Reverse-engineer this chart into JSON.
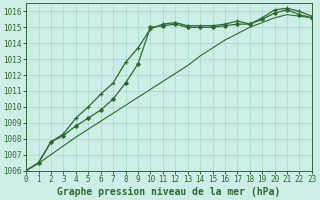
{
  "title": "Graphe pression niveau de la mer (hPa)",
  "background_color": "#cceee6",
  "grid_color": "#aaddcc",
  "line_color": "#2d6a2d",
  "xlim": [
    0,
    23
  ],
  "ylim": [
    1006,
    1016.5
  ],
  "xticks": [
    0,
    1,
    2,
    3,
    4,
    5,
    6,
    7,
    8,
    9,
    10,
    11,
    12,
    13,
    14,
    15,
    16,
    17,
    18,
    19,
    20,
    21,
    22,
    23
  ],
  "yticks": [
    1006,
    1007,
    1008,
    1009,
    1010,
    1011,
    1012,
    1013,
    1014,
    1015,
    1016
  ],
  "series1_x": [
    0,
    1,
    2,
    3,
    4,
    5,
    6,
    7,
    8,
    9,
    10,
    11,
    12,
    13,
    14,
    15,
    16,
    17,
    18,
    19,
    20,
    21,
    22,
    23
  ],
  "series1_y": [
    1006.0,
    1006.45,
    1007.0,
    1007.55,
    1008.1,
    1008.6,
    1009.1,
    1009.6,
    1010.1,
    1010.6,
    1011.1,
    1011.6,
    1012.1,
    1012.6,
    1013.2,
    1013.7,
    1014.2,
    1014.6,
    1015.0,
    1015.3,
    1015.6,
    1015.8,
    1015.7,
    1015.6
  ],
  "series2_x": [
    0,
    1,
    2,
    3,
    4,
    5,
    6,
    7,
    8,
    9,
    10,
    11,
    12,
    13,
    14,
    15,
    16,
    17,
    18,
    19,
    20,
    21,
    22,
    23
  ],
  "series2_y": [
    1006.0,
    1006.5,
    1007.8,
    1008.2,
    1008.8,
    1009.3,
    1009.8,
    1010.5,
    1011.5,
    1012.7,
    1015.0,
    1015.1,
    1015.2,
    1015.0,
    1015.0,
    1015.0,
    1015.1,
    1015.2,
    1015.2,
    1015.5,
    1015.9,
    1016.1,
    1015.8,
    1015.6
  ],
  "series3_x": [
    0,
    1,
    2,
    3,
    4,
    5,
    6,
    7,
    8,
    9,
    10,
    11,
    12,
    13,
    14,
    15,
    16,
    17,
    18,
    19,
    20,
    21,
    22,
    23
  ],
  "series3_y": [
    1006.0,
    1006.5,
    1007.8,
    1008.3,
    1009.3,
    1010.0,
    1010.8,
    1011.5,
    1012.8,
    1013.7,
    1014.9,
    1015.2,
    1015.3,
    1015.1,
    1015.1,
    1015.1,
    1015.2,
    1015.4,
    1015.2,
    1015.6,
    1016.1,
    1016.2,
    1016.0,
    1015.7
  ],
  "title_fontsize": 7.0,
  "tick_fontsize": 5.5
}
